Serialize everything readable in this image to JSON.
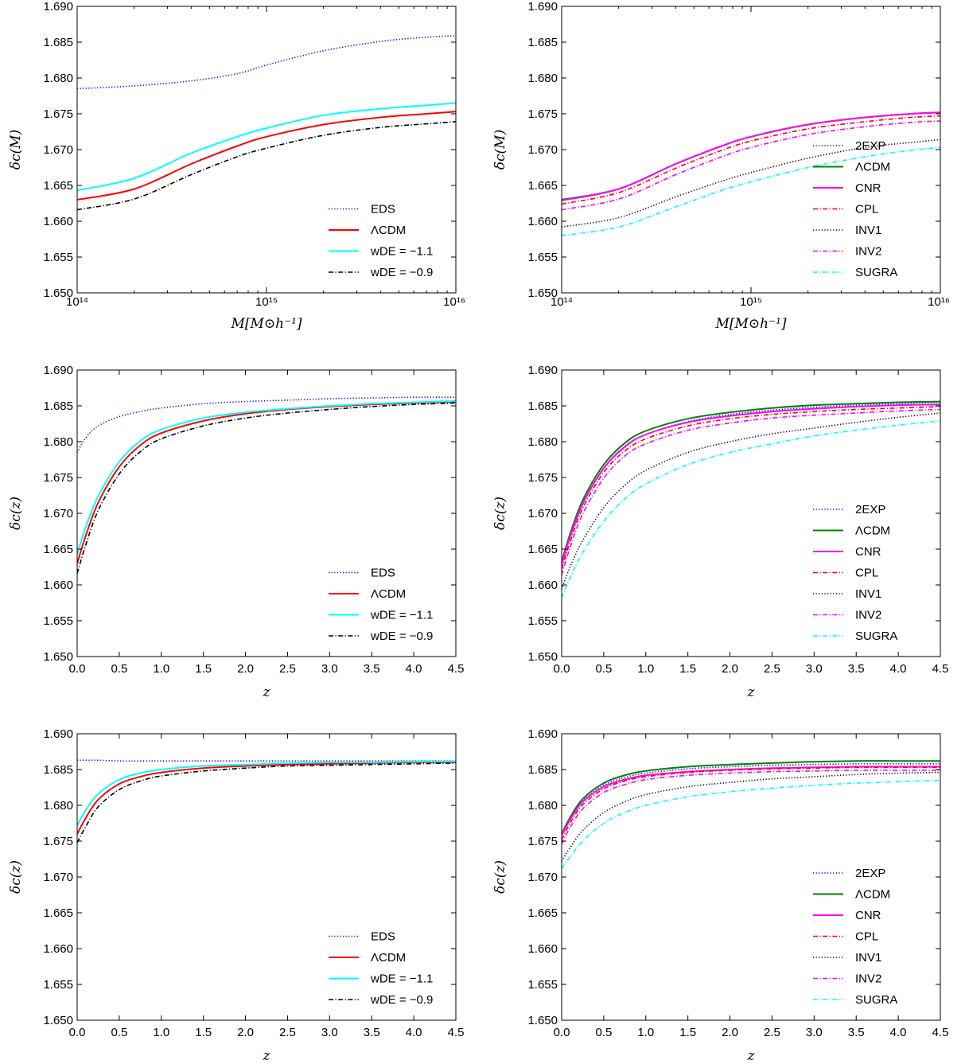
{
  "colors": {
    "EDS": "#0000ff",
    "2EXP": "#0000ff",
    "LCDM_left": "#ff0000",
    "LCDM_right": "#008000",
    "wm11": "#00ffff",
    "wm09": "#000000",
    "CNR": "#ff00ff",
    "CPL": "#ff0000",
    "INV1": "#000000",
    "INV2": "#ff00ff",
    "SUGRA": "#00ffff"
  },
  "chart_data": [
    {
      "type": "line",
      "xscale": "log",
      "xlim": [
        100000000000000.0,
        1e+16
      ],
      "ylim": [
        1.65,
        1.69
      ],
      "xlabel": "M[M⊙h⁻¹]",
      "ylabel": "δc(M)",
      "xticks": [
        "10¹⁴",
        "10¹⁵",
        "10¹⁶"
      ],
      "yticks": [
        "1.650",
        "1.655",
        "1.660",
        "1.665",
        "1.670",
        "1.675",
        "1.680",
        "1.685",
        "1.690"
      ],
      "legend_position": "lower-right",
      "x": [
        100000000000000.0,
        200000000000000.0,
        400000000000000.0,
        700000000000000.0,
        1000000000000000.0,
        2000000000000000.0,
        4000000000000000.0,
        7000000000000000.0,
        1e+16
      ],
      "series": [
        {
          "name": "EDS",
          "style": "dotted",
          "color_key": "EDS",
          "values": [
            1.6785,
            1.6789,
            1.6796,
            1.6806,
            1.6818,
            1.6838,
            1.6851,
            1.6857,
            1.6859
          ]
        },
        {
          "name": "ΛCDM",
          "style": "solid",
          "color_key": "LCDM_left",
          "values": [
            1.663,
            1.6645,
            1.668,
            1.6705,
            1.6718,
            1.6735,
            1.6745,
            1.675,
            1.6753
          ]
        },
        {
          "name": "wDE = −1.1",
          "style": "solid",
          "color_key": "wm11",
          "values": [
            1.6643,
            1.666,
            1.6695,
            1.6718,
            1.673,
            1.6748,
            1.6757,
            1.6762,
            1.6765
          ]
        },
        {
          "name": "wDE = −0.9",
          "style": "dashdot",
          "color_key": "wm09",
          "values": [
            1.6616,
            1.6631,
            1.6665,
            1.669,
            1.6702,
            1.672,
            1.6731,
            1.6736,
            1.6739
          ]
        }
      ]
    },
    {
      "type": "line",
      "xscale": "log",
      "xlim": [
        100000000000000.0,
        1e+16
      ],
      "ylim": [
        1.65,
        1.69
      ],
      "xlabel": "M[M⊙h⁻¹]",
      "ylabel": "δc(M)",
      "xticks": [
        "10¹⁴",
        "10¹⁵",
        "10¹⁶"
      ],
      "yticks": [
        "1.650",
        "1.655",
        "1.660",
        "1.665",
        "1.670",
        "1.675",
        "1.680",
        "1.685",
        "1.690"
      ],
      "legend_position": "lower-right",
      "x": [
        100000000000000.0,
        200000000000000.0,
        400000000000000.0,
        700000000000000.0,
        1000000000000000.0,
        2000000000000000.0,
        4000000000000000.0,
        7000000000000000.0,
        1e+16
      ],
      "series": [
        {
          "name": "2EXP",
          "style": "dotted",
          "color_key": "2EXP",
          "values": [
            1.663,
            1.6645,
            1.668,
            1.6705,
            1.6718,
            1.6735,
            1.6745,
            1.675,
            1.6752
          ]
        },
        {
          "name": "ΛCDM",
          "style": "solid",
          "color_key": "LCDM_right",
          "values": [
            1.663,
            1.6645,
            1.668,
            1.6705,
            1.6718,
            1.6735,
            1.6745,
            1.675,
            1.6752
          ]
        },
        {
          "name": "CNR",
          "style": "solid",
          "color_key": "CNR",
          "values": [
            1.6629,
            1.6645,
            1.668,
            1.6705,
            1.6718,
            1.6735,
            1.6745,
            1.675,
            1.6752
          ]
        },
        {
          "name": "CPL",
          "style": "dashdot",
          "color_key": "CPL",
          "values": [
            1.6624,
            1.664,
            1.6674,
            1.6699,
            1.6712,
            1.6729,
            1.6739,
            1.6745,
            1.6747
          ]
        },
        {
          "name": "INV1",
          "style": "dotted",
          "color_key": "INV1",
          "values": [
            1.6592,
            1.6605,
            1.6634,
            1.6656,
            1.6668,
            1.6688,
            1.6703,
            1.671,
            1.6714
          ]
        },
        {
          "name": "INV2",
          "style": "dashdot",
          "color_key": "INV2",
          "values": [
            1.6616,
            1.6631,
            1.6665,
            1.669,
            1.6703,
            1.6721,
            1.6732,
            1.6738,
            1.674
          ]
        },
        {
          "name": "SUGRA",
          "style": "dashdot",
          "color_key": "SUGRA",
          "values": [
            1.658,
            1.6592,
            1.662,
            1.6643,
            1.6655,
            1.6675,
            1.669,
            1.6699,
            1.6703
          ]
        }
      ]
    },
    {
      "type": "line",
      "xlim": [
        0,
        4.5
      ],
      "ylim": [
        1.65,
        1.69
      ],
      "xlabel": "z",
      "ylabel": "δc(z)",
      "xticks": [
        "0.0",
        "0.5",
        "1.0",
        "1.5",
        "2.0",
        "2.5",
        "3.0",
        "3.5",
        "4.0",
        "4.5"
      ],
      "yticks": [
        "1.650",
        "1.655",
        "1.660",
        "1.665",
        "1.670",
        "1.675",
        "1.680",
        "1.685",
        "1.690"
      ],
      "legend_position": "lower-right",
      "x": [
        0,
        0.1,
        0.25,
        0.5,
        0.75,
        1.0,
        1.5,
        2.0,
        2.5,
        3.0,
        3.5,
        4.0,
        4.5
      ],
      "series": [
        {
          "name": "EDS",
          "style": "dotted",
          "color_key": "EDS",
          "values": [
            1.6785,
            1.6805,
            1.6822,
            1.6835,
            1.6842,
            1.6847,
            1.6853,
            1.6856,
            1.6858,
            1.686,
            1.6861,
            1.6862,
            1.6862
          ]
        },
        {
          "name": "ΛCDM",
          "style": "solid",
          "color_key": "LCDM_left",
          "values": [
            1.663,
            1.6668,
            1.6715,
            1.6765,
            1.6795,
            1.6812,
            1.6829,
            1.6839,
            1.6845,
            1.6849,
            1.6852,
            1.6854,
            1.6856
          ]
        },
        {
          "name": "wDE = −1.1",
          "style": "solid",
          "color_key": "wm11",
          "values": [
            1.6643,
            1.668,
            1.6724,
            1.6772,
            1.6801,
            1.6817,
            1.6833,
            1.6841,
            1.6846,
            1.685,
            1.6853,
            1.6855,
            1.6857
          ]
        },
        {
          "name": "wDE = −0.9",
          "style": "dashdot",
          "color_key": "wm09",
          "values": [
            1.6616,
            1.6655,
            1.6704,
            1.6755,
            1.6786,
            1.6804,
            1.6822,
            1.6833,
            1.684,
            1.6845,
            1.6849,
            1.6852,
            1.6854
          ]
        }
      ]
    },
    {
      "type": "line",
      "xlim": [
        0,
        4.5
      ],
      "ylim": [
        1.65,
        1.69
      ],
      "xlabel": "z",
      "ylabel": "δc(z)",
      "xticks": [
        "0.0",
        "0.5",
        "1.0",
        "1.5",
        "2.0",
        "2.5",
        "3.0",
        "3.5",
        "4.0",
        "4.5"
      ],
      "yticks": [
        "1.650",
        "1.655",
        "1.660",
        "1.665",
        "1.670",
        "1.675",
        "1.680",
        "1.685",
        "1.690"
      ],
      "legend_position": "lower-right",
      "x": [
        0,
        0.1,
        0.25,
        0.5,
        0.75,
        1.0,
        1.5,
        2.0,
        2.5,
        3.0,
        3.5,
        4.0,
        4.5
      ],
      "series": [
        {
          "name": "2EXP",
          "style": "dotted",
          "color_key": "2EXP",
          "values": [
            1.663,
            1.6668,
            1.6713,
            1.6762,
            1.6792,
            1.681,
            1.6828,
            1.6838,
            1.6844,
            1.6848,
            1.6851,
            1.6853,
            1.6855
          ]
        },
        {
          "name": "ΛCDM",
          "style": "solid",
          "color_key": "LCDM_right",
          "values": [
            1.6632,
            1.6671,
            1.6718,
            1.6768,
            1.6798,
            1.6815,
            1.6832,
            1.6841,
            1.6847,
            1.6851,
            1.6853,
            1.6855,
            1.6856
          ]
        },
        {
          "name": "CNR",
          "style": "solid",
          "color_key": "CNR",
          "values": [
            1.6629,
            1.6667,
            1.6713,
            1.6763,
            1.6793,
            1.681,
            1.6827,
            1.6836,
            1.6842,
            1.6846,
            1.6849,
            1.6851,
            1.6852
          ]
        },
        {
          "name": "CPL",
          "style": "dashdot",
          "color_key": "CPL",
          "values": [
            1.6622,
            1.666,
            1.6707,
            1.6757,
            1.6787,
            1.6804,
            1.6822,
            1.6832,
            1.6838,
            1.6842,
            1.6845,
            1.6847,
            1.6849
          ]
        },
        {
          "name": "INV1",
          "style": "dotted",
          "color_key": "INV1",
          "values": [
            1.6594,
            1.6625,
            1.6662,
            1.6708,
            1.6739,
            1.676,
            1.6785,
            1.68,
            1.6811,
            1.6819,
            1.6827,
            1.6834,
            1.684
          ]
        },
        {
          "name": "INV2",
          "style": "dashdot",
          "color_key": "INV2",
          "values": [
            1.6614,
            1.6652,
            1.6699,
            1.6749,
            1.678,
            1.6797,
            1.6816,
            1.6826,
            1.6833,
            1.6837,
            1.684,
            1.6843,
            1.6845
          ]
        },
        {
          "name": "SUGRA",
          "style": "dashdot",
          "color_key": "SUGRA",
          "values": [
            1.6582,
            1.661,
            1.6645,
            1.6689,
            1.672,
            1.6741,
            1.6768,
            1.6785,
            1.6797,
            1.6808,
            1.6816,
            1.6823,
            1.6829
          ]
        }
      ]
    },
    {
      "type": "line",
      "xlim": [
        0,
        4.5
      ],
      "ylim": [
        1.65,
        1.69
      ],
      "xlabel": "z",
      "ylabel": "δc(z)",
      "xticks": [
        "0.0",
        "0.5",
        "1.0",
        "1.5",
        "2.0",
        "2.5",
        "3.0",
        "3.5",
        "4.0",
        "4.5"
      ],
      "yticks": [
        "1.650",
        "1.655",
        "1.660",
        "1.665",
        "1.670",
        "1.675",
        "1.680",
        "1.685",
        "1.690"
      ],
      "legend_position": "lower-right",
      "x": [
        0,
        0.1,
        0.25,
        0.5,
        0.75,
        1.0,
        1.5,
        2.0,
        2.5,
        3.0,
        3.5,
        4.0,
        4.5
      ],
      "series": [
        {
          "name": "EDS",
          "style": "dotted",
          "color_key": "EDS",
          "values": [
            1.6863,
            1.6863,
            1.6863,
            1.6862,
            1.6862,
            1.6862,
            1.6862,
            1.6862,
            1.6862,
            1.6862,
            1.6862,
            1.6862,
            1.6862
          ]
        },
        {
          "name": "ΛCDM",
          "style": "solid",
          "color_key": "LCDM_left",
          "values": [
            1.676,
            1.6782,
            1.6808,
            1.683,
            1.684,
            1.6846,
            1.6852,
            1.6855,
            1.6857,
            1.6858,
            1.6859,
            1.686,
            1.686
          ]
        },
        {
          "name": "wDE = −1.1",
          "style": "solid",
          "color_key": "wm11",
          "values": [
            1.6772,
            1.6793,
            1.6816,
            1.6836,
            1.6845,
            1.685,
            1.6855,
            1.6857,
            1.6859,
            1.686,
            1.686,
            1.6861,
            1.6861
          ]
        },
        {
          "name": "wDE = −0.9",
          "style": "dashdot",
          "color_key": "wm09",
          "values": [
            1.6748,
            1.677,
            1.6798,
            1.6822,
            1.6834,
            1.6841,
            1.6848,
            1.6852,
            1.6855,
            1.6856,
            1.6857,
            1.6858,
            1.6859
          ]
        }
      ]
    },
    {
      "type": "line",
      "xlim": [
        0,
        4.5
      ],
      "ylim": [
        1.65,
        1.69
      ],
      "xlabel": "z",
      "ylabel": "δc(z)",
      "xticks": [
        "0.0",
        "0.5",
        "1.0",
        "1.5",
        "2.0",
        "2.5",
        "3.0",
        "3.5",
        "4.0",
        "4.5"
      ],
      "yticks": [
        "1.650",
        "1.655",
        "1.660",
        "1.665",
        "1.670",
        "1.675",
        "1.680",
        "1.685",
        "1.690"
      ],
      "legend_position": "lower-right",
      "x": [
        0,
        0.1,
        0.25,
        0.5,
        0.75,
        1.0,
        1.5,
        2.0,
        2.5,
        3.0,
        3.5,
        4.0,
        4.5
      ],
      "series": [
        {
          "name": "2EXP",
          "style": "dotted",
          "color_key": "2EXP",
          "values": [
            1.6758,
            1.678,
            1.6806,
            1.6828,
            1.6839,
            1.6845,
            1.6851,
            1.6854,
            1.6856,
            1.6857,
            1.6858,
            1.6858,
            1.6858
          ]
        },
        {
          "name": "ΛCDM",
          "style": "solid",
          "color_key": "LCDM_right",
          "values": [
            1.676,
            1.6783,
            1.6809,
            1.6831,
            1.6842,
            1.6848,
            1.6854,
            1.6857,
            1.6859,
            1.6861,
            1.6862,
            1.6862,
            1.6862
          ]
        },
        {
          "name": "CNR",
          "style": "solid",
          "color_key": "CNR",
          "values": [
            1.6758,
            1.678,
            1.6805,
            1.6826,
            1.6836,
            1.6842,
            1.6847,
            1.685,
            1.6852,
            1.6853,
            1.6854,
            1.6854,
            1.6854
          ]
        },
        {
          "name": "CPL",
          "style": "dashdot",
          "color_key": "CPL",
          "values": [
            1.6752,
            1.6775,
            1.6801,
            1.6823,
            1.6834,
            1.684,
            1.6846,
            1.6849,
            1.6851,
            1.6852,
            1.6853,
            1.6853,
            1.6853
          ]
        },
        {
          "name": "INV1",
          "style": "dotted",
          "color_key": "INV1",
          "values": [
            1.6722,
            1.6741,
            1.6765,
            1.679,
            1.6805,
            1.6815,
            1.6826,
            1.6832,
            1.6837,
            1.684,
            1.6843,
            1.6845,
            1.6846
          ]
        },
        {
          "name": "INV2",
          "style": "dashdot",
          "color_key": "INV2",
          "values": [
            1.6746,
            1.6769,
            1.6795,
            1.6818,
            1.6829,
            1.6836,
            1.6842,
            1.6845,
            1.6847,
            1.6848,
            1.6849,
            1.6849,
            1.6849
          ]
        },
        {
          "name": "SUGRA",
          "style": "dashdot",
          "color_key": "SUGRA",
          "values": [
            1.6712,
            1.6728,
            1.675,
            1.6775,
            1.679,
            1.68,
            1.6812,
            1.6819,
            1.6824,
            1.6828,
            1.6831,
            1.6833,
            1.6835
          ]
        }
      ]
    }
  ]
}
